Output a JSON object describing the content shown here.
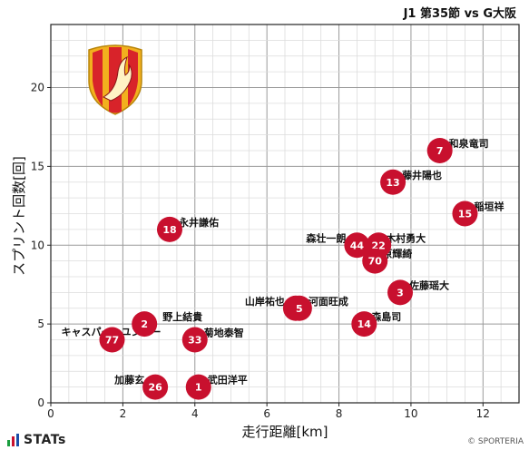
{
  "header": {
    "title": "J1 第35節 vs G大阪"
  },
  "footer": {
    "brand": "STATs",
    "credit": "© SPORTERIA"
  },
  "colors": {
    "point": "#c8102e",
    "point_text": "#ffffff",
    "grid_major": "#9a9a9a",
    "grid_minor": "#dcdcdc",
    "crest_red": "#d8232a",
    "crest_gold": "#f2b01e"
  },
  "crest": {
    "icon": "club-crest-icon"
  },
  "chart_data": {
    "type": "scatter",
    "xlabel": "走行距離[km]",
    "ylabel": "スプリント回数[回]",
    "xlim": [
      0,
      13
    ],
    "ylim": [
      0,
      24
    ],
    "xticks": [
      0,
      2,
      4,
      6,
      8,
      10,
      12
    ],
    "yticks": [
      0,
      5,
      10,
      15,
      20
    ],
    "grid": true,
    "points": [
      {
        "number": "7",
        "name": "和泉竜司",
        "x": 10.8,
        "y": 16
      },
      {
        "number": "13",
        "name": "藤井陽也",
        "x": 9.5,
        "y": 14
      },
      {
        "number": "15",
        "name": "稲垣祥",
        "x": 11.5,
        "y": 12
      },
      {
        "number": "18",
        "name": "永井謙佑",
        "x": 3.3,
        "y": 11
      },
      {
        "number": "44",
        "name": "森壮一朗",
        "x": 8.5,
        "y": 10
      },
      {
        "number": "22",
        "name": "木村勇大",
        "x": 9.1,
        "y": 10
      },
      {
        "number": "70",
        "name": "原輝綺",
        "x": 9.0,
        "y": 9
      },
      {
        "number": "3",
        "name": "佐藤瑶大",
        "x": 9.7,
        "y": 7
      },
      {
        "number": "16",
        "name": "山岸祐也",
        "x": 6.8,
        "y": 6
      },
      {
        "number": "5",
        "name": "河面旺成",
        "x": 6.9,
        "y": 6
      },
      {
        "number": "14",
        "name": "森島司",
        "x": 8.7,
        "y": 5
      },
      {
        "number": "2",
        "name": "野上結貴",
        "x": 2.6,
        "y": 5
      },
      {
        "number": "77",
        "name": "キャスパー・ユンカー",
        "x": 1.7,
        "y": 4
      },
      {
        "number": "33",
        "name": "菊地泰智",
        "x": 4.0,
        "y": 4
      },
      {
        "number": "26",
        "name": "加藤玄",
        "x": 2.9,
        "y": 1
      },
      {
        "number": "1",
        "name": "武田洋平",
        "x": 4.1,
        "y": 1
      }
    ]
  }
}
